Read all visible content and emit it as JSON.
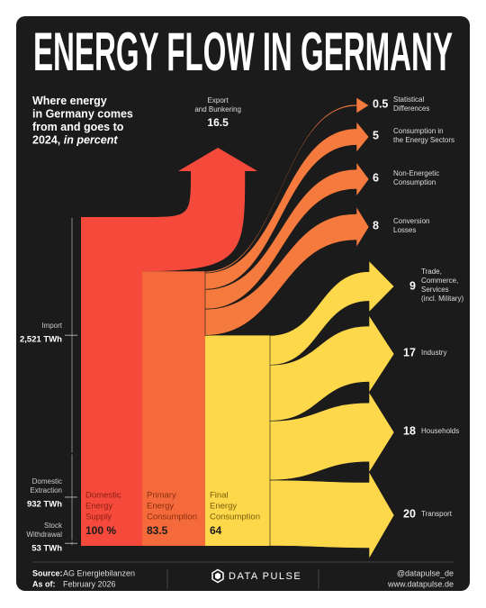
{
  "header": {
    "title": "ENERGY FLOW IN GERMANY"
  },
  "chart_data": {
    "type": "sankey",
    "subtitle": [
      "Where energy",
      "in Germany comes",
      "from and goes to",
      "2024,"
    ],
    "subtitle_emphasis": "in percent",
    "sources": [
      {
        "name": [
          "Import"
        ],
        "value": 2521,
        "value_label": "2,521 TWh"
      },
      {
        "name": [
          "Domestic",
          "Extraction"
        ],
        "value": 932,
        "value_label": "932 TWh"
      },
      {
        "name": [
          "Stock",
          "Withdrawal"
        ],
        "value": 53,
        "value_label": "53 TWh"
      }
    ],
    "stages": [
      {
        "name": [
          "Domestic",
          "Energy",
          "Supply"
        ],
        "value": 100,
        "value_label": "100 %",
        "color": "#f4493b"
      },
      {
        "name": [
          "Primary",
          "Energy",
          "Consumption"
        ],
        "value": 83.5,
        "color": "#f56a3b"
      },
      {
        "name": [
          "Final",
          "Energy",
          "Consumption"
        ],
        "value": 64,
        "color": "#fdd84a"
      }
    ],
    "outflows": [
      {
        "name": [
          "Export",
          "and Bunkering"
        ],
        "value": 16.5,
        "from": 0,
        "color": "#f4493b"
      },
      {
        "name": [
          "Statistical",
          "Differences"
        ],
        "value": 0.5,
        "from": 1,
        "color": "#f47a3d"
      },
      {
        "name": [
          "Consumption in",
          "the Energy Sectors"
        ],
        "value": 5,
        "from": 1,
        "color": "#f47a3d"
      },
      {
        "name": [
          "Non-Energetic",
          "Consumption"
        ],
        "value": 6,
        "from": 1,
        "color": "#f47a3d"
      },
      {
        "name": [
          "Conversion",
          "Losses"
        ],
        "value": 8,
        "from": 1,
        "color": "#f47a3d"
      },
      {
        "name": [
          "Trade,",
          "Commerce,",
          "Services",
          "(incl. Military)"
        ],
        "value": 9,
        "from": 2,
        "color": "#fdd84a"
      },
      {
        "name": [
          "Industry"
        ],
        "value": 17,
        "from": 2,
        "color": "#fdd84a"
      },
      {
        "name": [
          "Households"
        ],
        "value": 18,
        "from": 2,
        "color": "#fdd84a"
      },
      {
        "name": [
          "Transport"
        ],
        "value": 20,
        "from": 2,
        "color": "#fdd84a"
      }
    ]
  },
  "footer": {
    "source_label": "Source:",
    "source": "AG Energiebilanzen",
    "asof_label": "As of:",
    "asof": "February 2026",
    "brand": "DATA PULSE",
    "handle": "@datapulse_de",
    "website": "www.datapulse.de"
  }
}
